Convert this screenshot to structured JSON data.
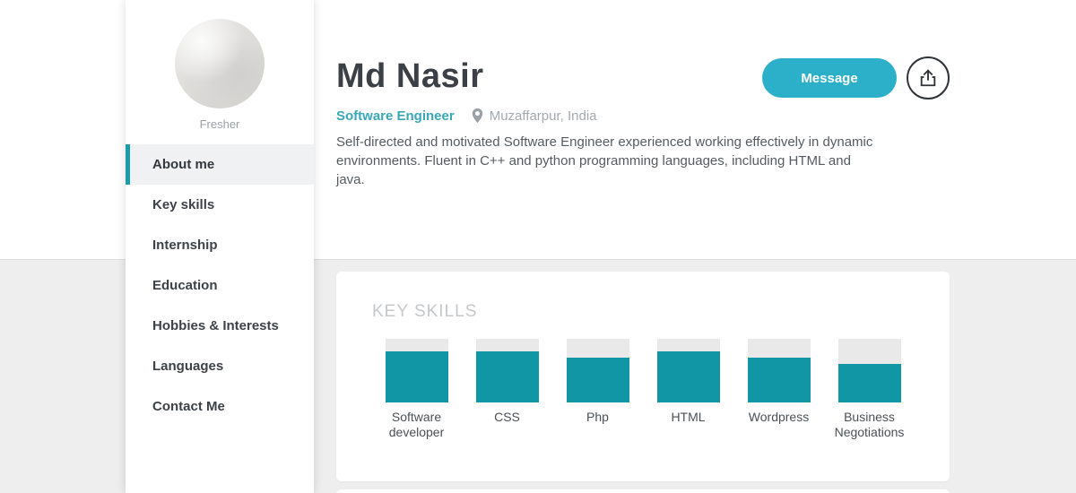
{
  "profile": {
    "badge": "Fresher",
    "name": "Md Nasir",
    "role": "Software Engineer",
    "location": "Muzaffarpur, India",
    "bio": "Self-directed and motivated Software Engineer experienced working effectively in dynamic environments. Fluent in C++ and python programming languages, including HTML and java."
  },
  "actions": {
    "message_label": "Message"
  },
  "sidebar": {
    "items": [
      {
        "label": "About me",
        "active": true
      },
      {
        "label": "Key skills",
        "active": false
      },
      {
        "label": "Internship",
        "active": false
      },
      {
        "label": "Education",
        "active": false
      },
      {
        "label": "Hobbies & Interests",
        "active": false
      },
      {
        "label": "Languages",
        "active": false
      },
      {
        "label": "Contact Me",
        "active": false
      }
    ]
  },
  "chart_data": {
    "type": "bar",
    "title": "KEY SKILLS",
    "categories": [
      "Software developer",
      "CSS",
      "Php",
      "HTML",
      "Wordpress",
      "Business Negotiations"
    ],
    "values": [
      80,
      80,
      70,
      80,
      70,
      60
    ],
    "ylim": [
      0,
      100
    ],
    "bar_color": "#1096a5",
    "track_color": "#e9e9e9",
    "grid": false,
    "legend": false
  },
  "colors": {
    "accent_teal": "#1096a5",
    "button_teal": "#2cafc9",
    "active_border": "#1b9caa",
    "page_background": "#eeeeee"
  }
}
